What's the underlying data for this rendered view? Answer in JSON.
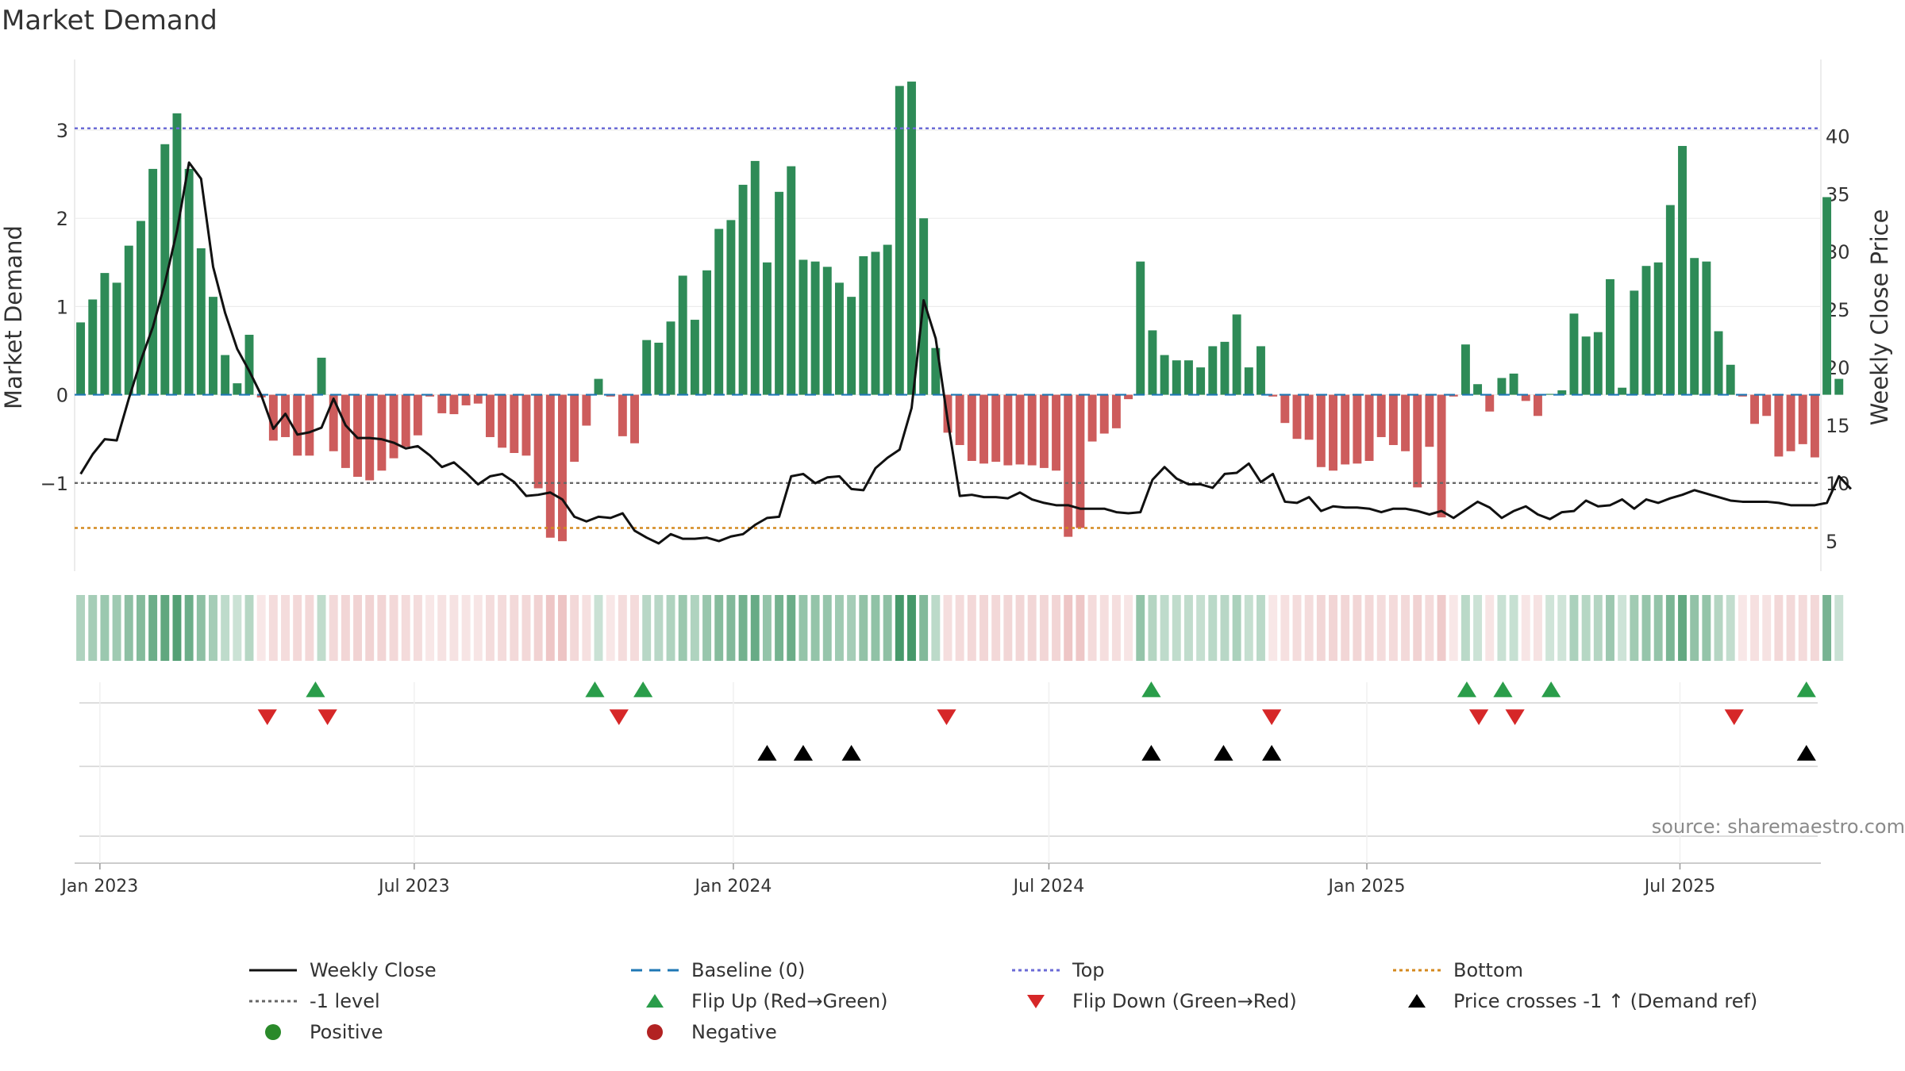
{
  "title": "Market Demand",
  "source": "source: sharemaestro.com",
  "colors": {
    "positive_bar": "#2e8b57",
    "negative_bar": "#cd5c5c",
    "close_line": "#111111",
    "baseline": "#1f77b4",
    "top_line": "#6b6bd6",
    "minus1_line": "#666666",
    "bottom_line": "#d4891e",
    "flip_up": "#2a9d4a",
    "flip_down": "#d62728",
    "cross": "#000000",
    "positive_dot": "#2a8a2a",
    "negative_dot": "#b22222"
  },
  "legend": [
    {
      "label": "Weekly Close",
      "icon": "solid-line-icon",
      "color": "#111111"
    },
    {
      "label": "Baseline (0)",
      "icon": "dashed-line-icon",
      "color": "#1f77b4"
    },
    {
      "label": "Top",
      "icon": "dotted-line-icon",
      "color": "#6b6bd6"
    },
    {
      "label": "Bottom",
      "icon": "dotted-line-icon",
      "color": "#d4891e"
    },
    {
      "label": "-1 level",
      "icon": "dotted-line-icon",
      "color": "#666666"
    },
    {
      "label": "Flip Up (Red→Green)",
      "icon": "triangle-up-icon",
      "color": "#2a9d4a"
    },
    {
      "label": "Flip Down (Green→Red)",
      "icon": "triangle-down-icon",
      "color": "#d62728"
    },
    {
      "label": "Price crosses -1 ↑ (Demand ref)",
      "icon": "triangle-up-icon",
      "color": "#000000"
    },
    {
      "label": "Positive",
      "icon": "circle-icon",
      "color": "#2a8a2a"
    },
    {
      "label": "Negative",
      "icon": "circle-icon",
      "color": "#b22222"
    }
  ],
  "chart_data": {
    "type": "bar",
    "title": "Market Demand",
    "ylabel": "Market Demand",
    "y2label": "Weekly Close Price",
    "ylim": [
      -2,
      3.8
    ],
    "y2lim": [
      2.4,
      46.6
    ],
    "yticks": [
      -1,
      0,
      1,
      2,
      3
    ],
    "ytick_labels": [
      "−1",
      "0",
      "1",
      "2",
      "3"
    ],
    "y2ticks": [
      5,
      10,
      15,
      20,
      25,
      30,
      35,
      40
    ],
    "y2tick_labels": [
      "5",
      "10",
      "15",
      "20",
      "25",
      "30",
      "35",
      "40"
    ],
    "reference_lines": {
      "baseline": 0,
      "minus1": -1,
      "top": 3.02,
      "bottom": -1.51
    },
    "xaxis": {
      "start_week_label": "2022-12-26",
      "num_weeks": 145,
      "ticks": [
        {
          "label": "Jan 2023",
          "week": 1.6
        },
        {
          "label": "Jul 2023",
          "week": 27.7
        },
        {
          "label": "Jan 2024",
          "week": 54.2
        },
        {
          "label": "Jul 2024",
          "week": 80.4
        },
        {
          "label": "Jan 2025",
          "week": 106.8
        },
        {
          "label": "Jul 2025",
          "week": 132.8
        }
      ]
    },
    "demand": [
      0.82,
      1.08,
      1.38,
      1.27,
      1.69,
      1.97,
      2.56,
      2.84,
      3.19,
      2.56,
      1.66,
      1.11,
      0.45,
      0.13,
      0.68,
      -0.03,
      -0.52,
      -0.48,
      -0.69,
      -0.69,
      0.42,
      -0.64,
      -0.83,
      -0.93,
      -0.97,
      -0.86,
      -0.72,
      -0.59,
      -0.46,
      -0.02,
      -0.21,
      -0.22,
      -0.12,
      -0.1,
      -0.48,
      -0.6,
      -0.66,
      -0.69,
      -1.06,
      -1.62,
      -1.66,
      -0.76,
      -0.35,
      0.18,
      -0.02,
      -0.47,
      -0.55,
      0.62,
      0.59,
      0.83,
      1.35,
      0.85,
      1.41,
      1.88,
      1.98,
      2.38,
      2.65,
      1.5,
      2.3,
      2.59,
      1.53,
      1.51,
      1.45,
      1.27,
      1.11,
      1.57,
      1.62,
      1.7,
      3.5,
      3.55,
      2.0,
      0.53,
      -0.43,
      -0.57,
      -0.75,
      -0.78,
      -0.76,
      -0.8,
      -0.79,
      -0.8,
      -0.83,
      -0.86,
      -1.61,
      -1.51,
      -0.53,
      -0.44,
      -0.38,
      -0.05,
      1.51,
      0.73,
      0.45,
      0.39,
      0.39,
      0.31,
      0.55,
      0.6,
      0.91,
      0.31,
      0.55,
      -0.02,
      -0.32,
      -0.5,
      -0.51,
      -0.82,
      -0.86,
      -0.79,
      -0.78,
      -0.75,
      -0.48,
      -0.57,
      -0.64,
      -1.05,
      -0.59,
      -1.39,
      -0.02,
      0.57,
      0.12,
      -0.19,
      0.19,
      0.24,
      -0.07,
      -0.24,
      0.01,
      0.05,
      0.92,
      0.66,
      0.71,
      1.31,
      0.08,
      1.18,
      1.46,
      1.5,
      2.15,
      2.82,
      1.55,
      1.51,
      0.72,
      0.34,
      -0.02,
      -0.33,
      -0.24,
      -0.7,
      -0.64,
      -0.56,
      -0.71,
      2.24,
      0.18
    ],
    "close": [
      10.8,
      12.5,
      13.8,
      13.7,
      17.3,
      20.6,
      23.5,
      27.3,
      31.8,
      37.7,
      36.3,
      28.7,
      24.7,
      21.6,
      19.7,
      17.6,
      14.7,
      16.0,
      14.2,
      14.4,
      14.8,
      17.3,
      15.0,
      13.9,
      13.9,
      13.8,
      13.5,
      13.0,
      13.2,
      12.4,
      11.4,
      11.8,
      10.9,
      9.9,
      10.6,
      10.8,
      10.1,
      8.9,
      9.0,
      9.2,
      8.6,
      7.1,
      6.7,
      7.1,
      7.0,
      7.4,
      5.9,
      5.3,
      4.8,
      5.6,
      5.2,
      5.2,
      5.3,
      5.0,
      5.4,
      5.6,
      6.4,
      7.0,
      7.1,
      10.6,
      10.8,
      10.0,
      10.5,
      10.6,
      9.5,
      9.4,
      11.3,
      12.2,
      12.9,
      16.5,
      25.8,
      22.5,
      15.4,
      8.9,
      9.0,
      8.8,
      8.8,
      8.7,
      9.2,
      8.6,
      8.3,
      8.1,
      8.1,
      7.8,
      7.8,
      7.8,
      7.5,
      7.4,
      7.5,
      10.3,
      11.4,
      10.4,
      9.9,
      9.9,
      9.6,
      10.8,
      10.9,
      11.7,
      10.1,
      10.8,
      8.4,
      8.3,
      8.8,
      7.6,
      8.0,
      7.9,
      7.9,
      7.8,
      7.5,
      7.8,
      7.8,
      7.6,
      7.3,
      7.6,
      7.0,
      7.7,
      8.4,
      7.9,
      7.0,
      7.6,
      8.0,
      7.3,
      6.9,
      7.5,
      7.6,
      8.5,
      8.0,
      8.1,
      8.6,
      7.8,
      8.6,
      8.3,
      8.7,
      9.0,
      9.4,
      9.1,
      8.8,
      8.5,
      8.4,
      8.4,
      8.4,
      8.3,
      8.1,
      8.1,
      8.1,
      8.3,
      10.6,
      9.5
    ],
    "flip_up_weeks": [
      19.5,
      42.7,
      46.7,
      88.9,
      115.1,
      118.1,
      122.1,
      143.3
    ],
    "flip_down_weeks": [
      15.5,
      20.5,
      44.7,
      71.9,
      98.9,
      116.1,
      119.1,
      137.3
    ],
    "price_cross_weeks": [
      57.0,
      60.0,
      64.0,
      88.9,
      94.9,
      98.9,
      143.3
    ]
  }
}
